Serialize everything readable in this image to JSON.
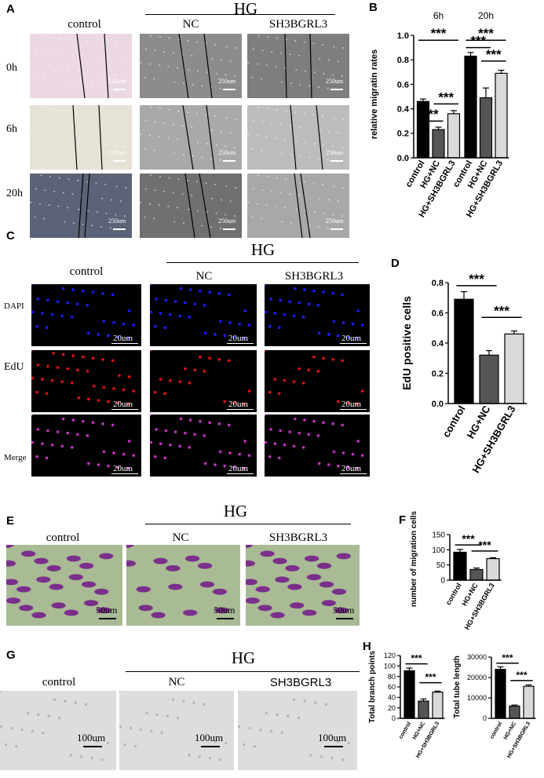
{
  "panels": {
    "A": {
      "label": "A",
      "group": "HG",
      "cols": [
        "control",
        "NC",
        "SH3BGRL3"
      ],
      "rows": [
        "0h",
        "6h",
        "20h"
      ],
      "scale": "250um"
    },
    "B": {
      "label": "B"
    },
    "C": {
      "label": "C",
      "group": "HG",
      "cols": [
        "control",
        "NC",
        "SH3BGRL3"
      ],
      "rows": [
        "DAPI",
        "EdU",
        "Merge"
      ],
      "scale": "20um"
    },
    "D": {
      "label": "D"
    },
    "E": {
      "label": "E",
      "group": "HG",
      "cols": [
        "control",
        "NC",
        "SH3BGRL3"
      ],
      "scale": "50um"
    },
    "F": {
      "label": "F"
    },
    "G": {
      "label": "G",
      "group": "HG",
      "cols": [
        "control",
        "NC",
        "SH3BGRL3"
      ],
      "scale": "100um"
    },
    "H": {
      "label": "H"
    }
  },
  "colors": {
    "black": "#000000",
    "dark_gray": "#555555",
    "light_gray": "#d9d9d9",
    "dapi": "#1a1aff",
    "edu": "#e01010"
  },
  "chart_data": [
    {
      "id": "B",
      "type": "bar",
      "ylabel": "relative migratin rates",
      "ylim": [
        0,
        1.0
      ],
      "yticks": [
        "0.0",
        "0.2",
        "0.4",
        "0.6",
        "0.8",
        "1.0"
      ],
      "group_labels": [
        "6h",
        "20h"
      ],
      "categories": [
        "control",
        "HG+NC",
        "HG+SH3BGRL3",
        "control",
        "HG+NC",
        "HG+SH3BGRL3"
      ],
      "values": [
        0.46,
        0.23,
        0.36,
        0.83,
        0.49,
        0.69
      ],
      "errors": [
        0.02,
        0.02,
        0.025,
        0.03,
        0.08,
        0.025
      ],
      "annotations": [
        "***",
        "***",
        "***",
        "***",
        "***",
        "***"
      ]
    },
    {
      "id": "D",
      "type": "bar",
      "ylabel": "EdU  positive cells",
      "ylim": [
        0,
        0.8
      ],
      "yticks": [
        "0.0",
        "0.2",
        "0.4",
        "0.6",
        "0.8"
      ],
      "categories": [
        "control",
        "HG+NC",
        "HG+SH3BGRL3"
      ],
      "values": [
        0.69,
        0.32,
        0.46
      ],
      "errors": [
        0.05,
        0.03,
        0.02
      ],
      "annotations": [
        "***",
        "***"
      ]
    },
    {
      "id": "F",
      "type": "bar",
      "ylabel": "number of migration cells",
      "ylim": [
        0,
        150
      ],
      "yticks": [
        "0",
        "50",
        "100",
        "150"
      ],
      "categories": [
        "control",
        "HG+NC",
        "HG+SH3BGRL3"
      ],
      "values": [
        92,
        35,
        71
      ],
      "errors": [
        9,
        5,
        3
      ],
      "annotations": [
        "***",
        "***"
      ]
    },
    {
      "id": "H1",
      "type": "bar",
      "ylabel": "Total branch points",
      "ylim": [
        0,
        120
      ],
      "yticks": [
        "0",
        "20",
        "40",
        "60",
        "80",
        "100",
        "120"
      ],
      "categories": [
        "control",
        "HG+NC",
        "HG+SH3BGRL3"
      ],
      "values": [
        91,
        33,
        50
      ],
      "errors": [
        5,
        4,
        2
      ],
      "annotations": [
        "***",
        "***"
      ]
    },
    {
      "id": "H2",
      "type": "bar",
      "ylabel": "Total tube length",
      "ylim": [
        0,
        30000
      ],
      "yticks": [
        "0",
        "10000",
        "20000",
        "30000"
      ],
      "categories": [
        "control",
        "HG+NC",
        "HG+SH3BGRL3"
      ],
      "values": [
        24000,
        6000,
        15700
      ],
      "errors": [
        1200,
        500,
        700
      ],
      "annotations": [
        "***",
        "***"
      ]
    }
  ]
}
